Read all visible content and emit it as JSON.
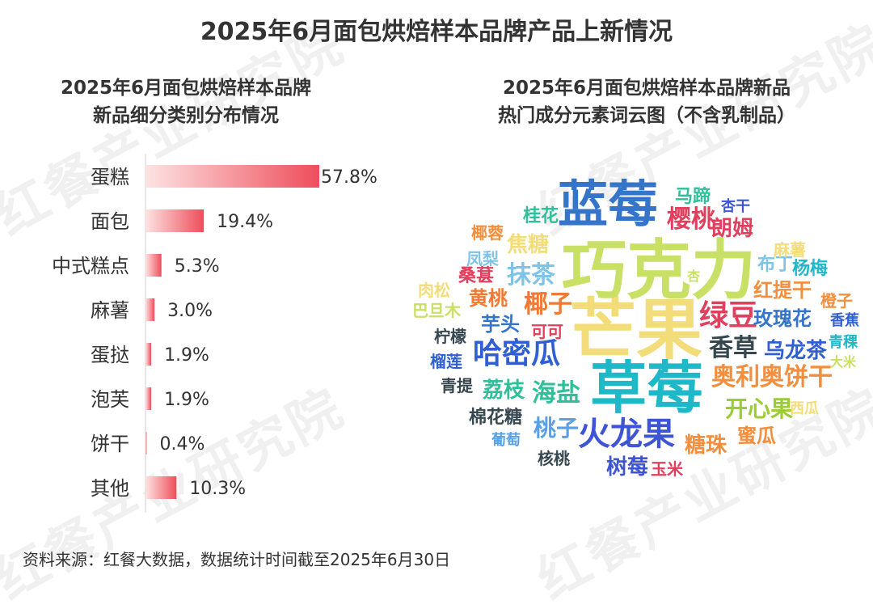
{
  "title": "2025年6月面包烘焙样本品牌产品上新情况",
  "watermark": "红餐产业研究院",
  "left_subtitle_line1": "2025年6月面包烘焙样本品牌",
  "left_subtitle_line2": "新品细分类别分布情况",
  "right_subtitle_line1": "2025年6月面包烘焙样本品牌新品",
  "right_subtitle_line2": "热门成分元素词云图（不含乳制品）",
  "source": "资料来源：红餐大数据，数据统计时间截至2025年6月30日",
  "colors": {
    "bar_start": "#fde3e3",
    "bar_end": "#ee4d5a",
    "axis": "#cccccc",
    "text": "#333333"
  },
  "chart_data": {
    "type": "bar",
    "orientation": "horizontal",
    "categories": [
      "蛋糕",
      "面包",
      "中式糕点",
      "麻薯",
      "蛋挞",
      "泡芙",
      "饼干",
      "其他"
    ],
    "values": [
      57.8,
      19.4,
      5.3,
      3.0,
      1.9,
      1.9,
      0.4,
      10.3
    ],
    "value_labels": [
      "57.8%",
      "19.4%",
      "5.3%",
      "3.0%",
      "1.9%",
      "1.9%",
      "0.4%",
      "10.3%"
    ],
    "unit": "%",
    "xlim": [
      0,
      60
    ],
    "grid": false
  },
  "word_cloud": [
    {
      "text": "芒果",
      "color": "#f3dd7a"
    },
    {
      "text": "巧克力",
      "color": "#c7e065"
    },
    {
      "text": "草莓",
      "color": "#1fb8c9"
    },
    {
      "text": "蓝莓",
      "color": "#3575c9"
    },
    {
      "text": "哈密瓜",
      "color": "#2f5fd0"
    },
    {
      "text": "火龙果",
      "color": "#3d55d5"
    },
    {
      "text": "绿豆",
      "color": "#e0405d"
    },
    {
      "text": "奥利奥饼干",
      "color": "#f28e3c"
    },
    {
      "text": "椰子",
      "color": "#ef7a35"
    },
    {
      "text": "樱桃",
      "color": "#e0405d"
    },
    {
      "text": "海盐",
      "color": "#2fbf9b"
    },
    {
      "text": "香草",
      "color": "#37474f"
    },
    {
      "text": "抹茶",
      "color": "#7fc3e8"
    },
    {
      "text": "朗姆",
      "color": "#e0405d"
    },
    {
      "text": "开心果",
      "color": "#9acd32"
    },
    {
      "text": "糖珠",
      "color": "#f28e3c"
    },
    {
      "text": "玫瑰花",
      "color": "#3575c9"
    },
    {
      "text": "乌龙茶",
      "color": "#2f5fd0"
    },
    {
      "text": "红提干",
      "color": "#f28e3c"
    },
    {
      "text": "焦糖",
      "color": "#f3dd7a"
    },
    {
      "text": "桃子",
      "color": "#5aa0e6"
    },
    {
      "text": "黄桃",
      "color": "#ef7a35"
    },
    {
      "text": "芋头",
      "color": "#3575c9"
    },
    {
      "text": "荔枝",
      "color": "#2fbf9b"
    },
    {
      "text": "树莓",
      "color": "#3d55d5"
    },
    {
      "text": "桑葚",
      "color": "#e0405d"
    },
    {
      "text": "棉花糖",
      "color": "#37474f"
    },
    {
      "text": "桂花",
      "color": "#2fbf9b"
    },
    {
      "text": "蜜瓜",
      "color": "#f28e3c"
    },
    {
      "text": "布丁",
      "color": "#7fc3e8"
    },
    {
      "text": "杨梅",
      "color": "#1fb8c9"
    },
    {
      "text": "马蹄",
      "color": "#2fbf9b"
    },
    {
      "text": "杏干",
      "color": "#3d55d5"
    },
    {
      "text": "椰蓉",
      "color": "#f28e3c"
    },
    {
      "text": "凤梨",
      "color": "#7fc3e8"
    },
    {
      "text": "肉松",
      "color": "#f3dd7a"
    },
    {
      "text": "巴旦木",
      "color": "#c7e065"
    },
    {
      "text": "柠檬",
      "color": "#37474f"
    },
    {
      "text": "榴莲",
      "color": "#2f5fd0"
    },
    {
      "text": "青提",
      "color": "#37474f"
    },
    {
      "text": "葡萄",
      "color": "#5aa0e6"
    },
    {
      "text": "核桃",
      "color": "#37474f"
    },
    {
      "text": "可可",
      "color": "#e0405d"
    },
    {
      "text": "玉米",
      "color": "#e0405d"
    },
    {
      "text": "麻薯",
      "color": "#f3dd7a"
    },
    {
      "text": "橙子",
      "color": "#f28e3c"
    },
    {
      "text": "香蕉",
      "color": "#2f5fd0"
    },
    {
      "text": "青稞",
      "color": "#1fb8c9"
    },
    {
      "text": "大米",
      "color": "#c7e065"
    },
    {
      "text": "西瓜",
      "color": "#f3dd7a"
    },
    {
      "text": "杏",
      "color": "#c7e065"
    }
  ]
}
